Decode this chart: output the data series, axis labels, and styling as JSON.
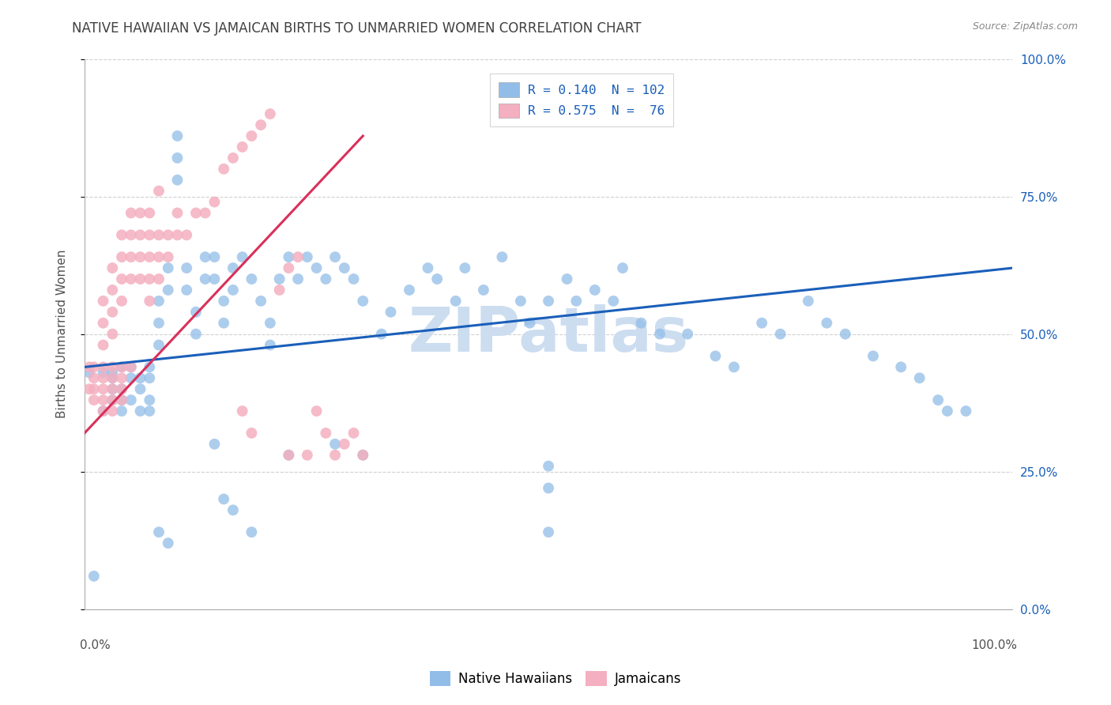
{
  "title": "NATIVE HAWAIIAN VS JAMAICAN BIRTHS TO UNMARRIED WOMEN CORRELATION CHART",
  "source": "Source: ZipAtlas.com",
  "ylabel": "Births to Unmarried Women",
  "ytick_values": [
    0.0,
    0.25,
    0.5,
    0.75,
    1.0
  ],
  "ytick_labels": [
    "0.0%",
    "25.0%",
    "50.0%",
    "75.0%",
    "100.0%"
  ],
  "xlim": [
    0.0,
    1.0
  ],
  "ylim": [
    0.0,
    1.0
  ],
  "legend_r_blue": "0.140",
  "legend_n_blue": "102",
  "legend_r_pink": "0.575",
  "legend_n_pink": " 76",
  "blue_color": "#92bde8",
  "pink_color": "#f4afc0",
  "line_blue": "#1a5fba",
  "line_pink": "#d9305a",
  "legend_text_color": "#1a5fba",
  "watermark": "ZIPatlas",
  "watermark_color": "#ccddf0",
  "background_color": "#ffffff",
  "grid_color": "#d0d0d0",
  "title_color": "#404040",
  "right_ytick_color": "#1a5fba",
  "source_color": "#888888",
  "native_hawaiians_x": [
    0.005,
    0.01,
    0.02,
    0.02,
    0.03,
    0.03,
    0.03,
    0.03,
    0.04,
    0.04,
    0.04,
    0.04,
    0.05,
    0.05,
    0.05,
    0.06,
    0.06,
    0.06,
    0.07,
    0.07,
    0.07,
    0.07,
    0.08,
    0.08,
    0.08,
    0.09,
    0.09,
    0.1,
    0.1,
    0.1,
    0.11,
    0.11,
    0.12,
    0.12,
    0.13,
    0.13,
    0.14,
    0.14,
    0.15,
    0.15,
    0.16,
    0.16,
    0.17,
    0.18,
    0.19,
    0.2,
    0.2,
    0.21,
    0.22,
    0.23,
    0.24,
    0.25,
    0.26,
    0.27,
    0.28,
    0.29,
    0.3,
    0.32,
    0.33,
    0.35,
    0.37,
    0.38,
    0.4,
    0.41,
    0.43,
    0.45,
    0.47,
    0.48,
    0.5,
    0.52,
    0.53,
    0.55,
    0.57,
    0.58,
    0.6,
    0.62,
    0.65,
    0.68,
    0.7,
    0.73,
    0.75,
    0.78,
    0.8,
    0.82,
    0.85,
    0.88,
    0.9,
    0.92,
    0.93,
    0.95,
    0.5,
    0.5,
    0.5,
    0.22,
    0.27,
    0.3,
    0.18,
    0.09,
    0.08,
    0.14,
    0.15,
    0.16
  ],
  "native_hawaiians_y": [
    0.43,
    0.06,
    0.43,
    0.36,
    0.43,
    0.42,
    0.4,
    0.38,
    0.44,
    0.4,
    0.38,
    0.36,
    0.44,
    0.42,
    0.38,
    0.42,
    0.4,
    0.36,
    0.44,
    0.42,
    0.38,
    0.36,
    0.56,
    0.52,
    0.48,
    0.62,
    0.58,
    0.86,
    0.82,
    0.78,
    0.62,
    0.58,
    0.54,
    0.5,
    0.64,
    0.6,
    0.64,
    0.6,
    0.56,
    0.52,
    0.62,
    0.58,
    0.64,
    0.6,
    0.56,
    0.52,
    0.48,
    0.6,
    0.64,
    0.6,
    0.64,
    0.62,
    0.6,
    0.64,
    0.62,
    0.6,
    0.56,
    0.5,
    0.54,
    0.58,
    0.62,
    0.6,
    0.56,
    0.62,
    0.58,
    0.64,
    0.56,
    0.52,
    0.56,
    0.6,
    0.56,
    0.58,
    0.56,
    0.62,
    0.52,
    0.5,
    0.5,
    0.46,
    0.44,
    0.52,
    0.5,
    0.56,
    0.52,
    0.5,
    0.46,
    0.44,
    0.42,
    0.38,
    0.36,
    0.36,
    0.22,
    0.26,
    0.14,
    0.28,
    0.3,
    0.28,
    0.14,
    0.12,
    0.14,
    0.3,
    0.2,
    0.18
  ],
  "jamaicans_x": [
    0.005,
    0.005,
    0.01,
    0.01,
    0.01,
    0.01,
    0.02,
    0.02,
    0.02,
    0.02,
    0.02,
    0.02,
    0.02,
    0.02,
    0.03,
    0.03,
    0.03,
    0.03,
    0.03,
    0.03,
    0.03,
    0.03,
    0.03,
    0.04,
    0.04,
    0.04,
    0.04,
    0.04,
    0.04,
    0.04,
    0.04,
    0.05,
    0.05,
    0.05,
    0.05,
    0.05,
    0.06,
    0.06,
    0.06,
    0.06,
    0.07,
    0.07,
    0.07,
    0.07,
    0.08,
    0.08,
    0.08,
    0.09,
    0.09,
    0.1,
    0.1,
    0.11,
    0.12,
    0.13,
    0.14,
    0.15,
    0.16,
    0.17,
    0.18,
    0.19,
    0.2,
    0.21,
    0.22,
    0.23,
    0.24,
    0.25,
    0.26,
    0.27,
    0.28,
    0.29,
    0.3,
    0.17,
    0.18,
    0.22,
    0.07,
    0.08
  ],
  "jamaicans_y": [
    0.44,
    0.4,
    0.44,
    0.42,
    0.4,
    0.38,
    0.44,
    0.42,
    0.4,
    0.38,
    0.36,
    0.48,
    0.52,
    0.56,
    0.44,
    0.42,
    0.4,
    0.38,
    0.36,
    0.5,
    0.54,
    0.58,
    0.62,
    0.44,
    0.42,
    0.4,
    0.38,
    0.56,
    0.6,
    0.64,
    0.68,
    0.44,
    0.6,
    0.64,
    0.68,
    0.72,
    0.6,
    0.64,
    0.68,
    0.72,
    0.56,
    0.6,
    0.64,
    0.68,
    0.6,
    0.64,
    0.68,
    0.64,
    0.68,
    0.68,
    0.72,
    0.68,
    0.72,
    0.72,
    0.74,
    0.8,
    0.82,
    0.84,
    0.86,
    0.88,
    0.9,
    0.58,
    0.62,
    0.64,
    0.28,
    0.36,
    0.32,
    0.28,
    0.3,
    0.32,
    0.28,
    0.36,
    0.32,
    0.28,
    0.72,
    0.76
  ],
  "blue_line_x": [
    0.0,
    1.0
  ],
  "blue_line_y": [
    0.44,
    0.62
  ],
  "pink_line_x": [
    0.0,
    0.3
  ],
  "pink_line_y": [
    0.32,
    0.86
  ]
}
